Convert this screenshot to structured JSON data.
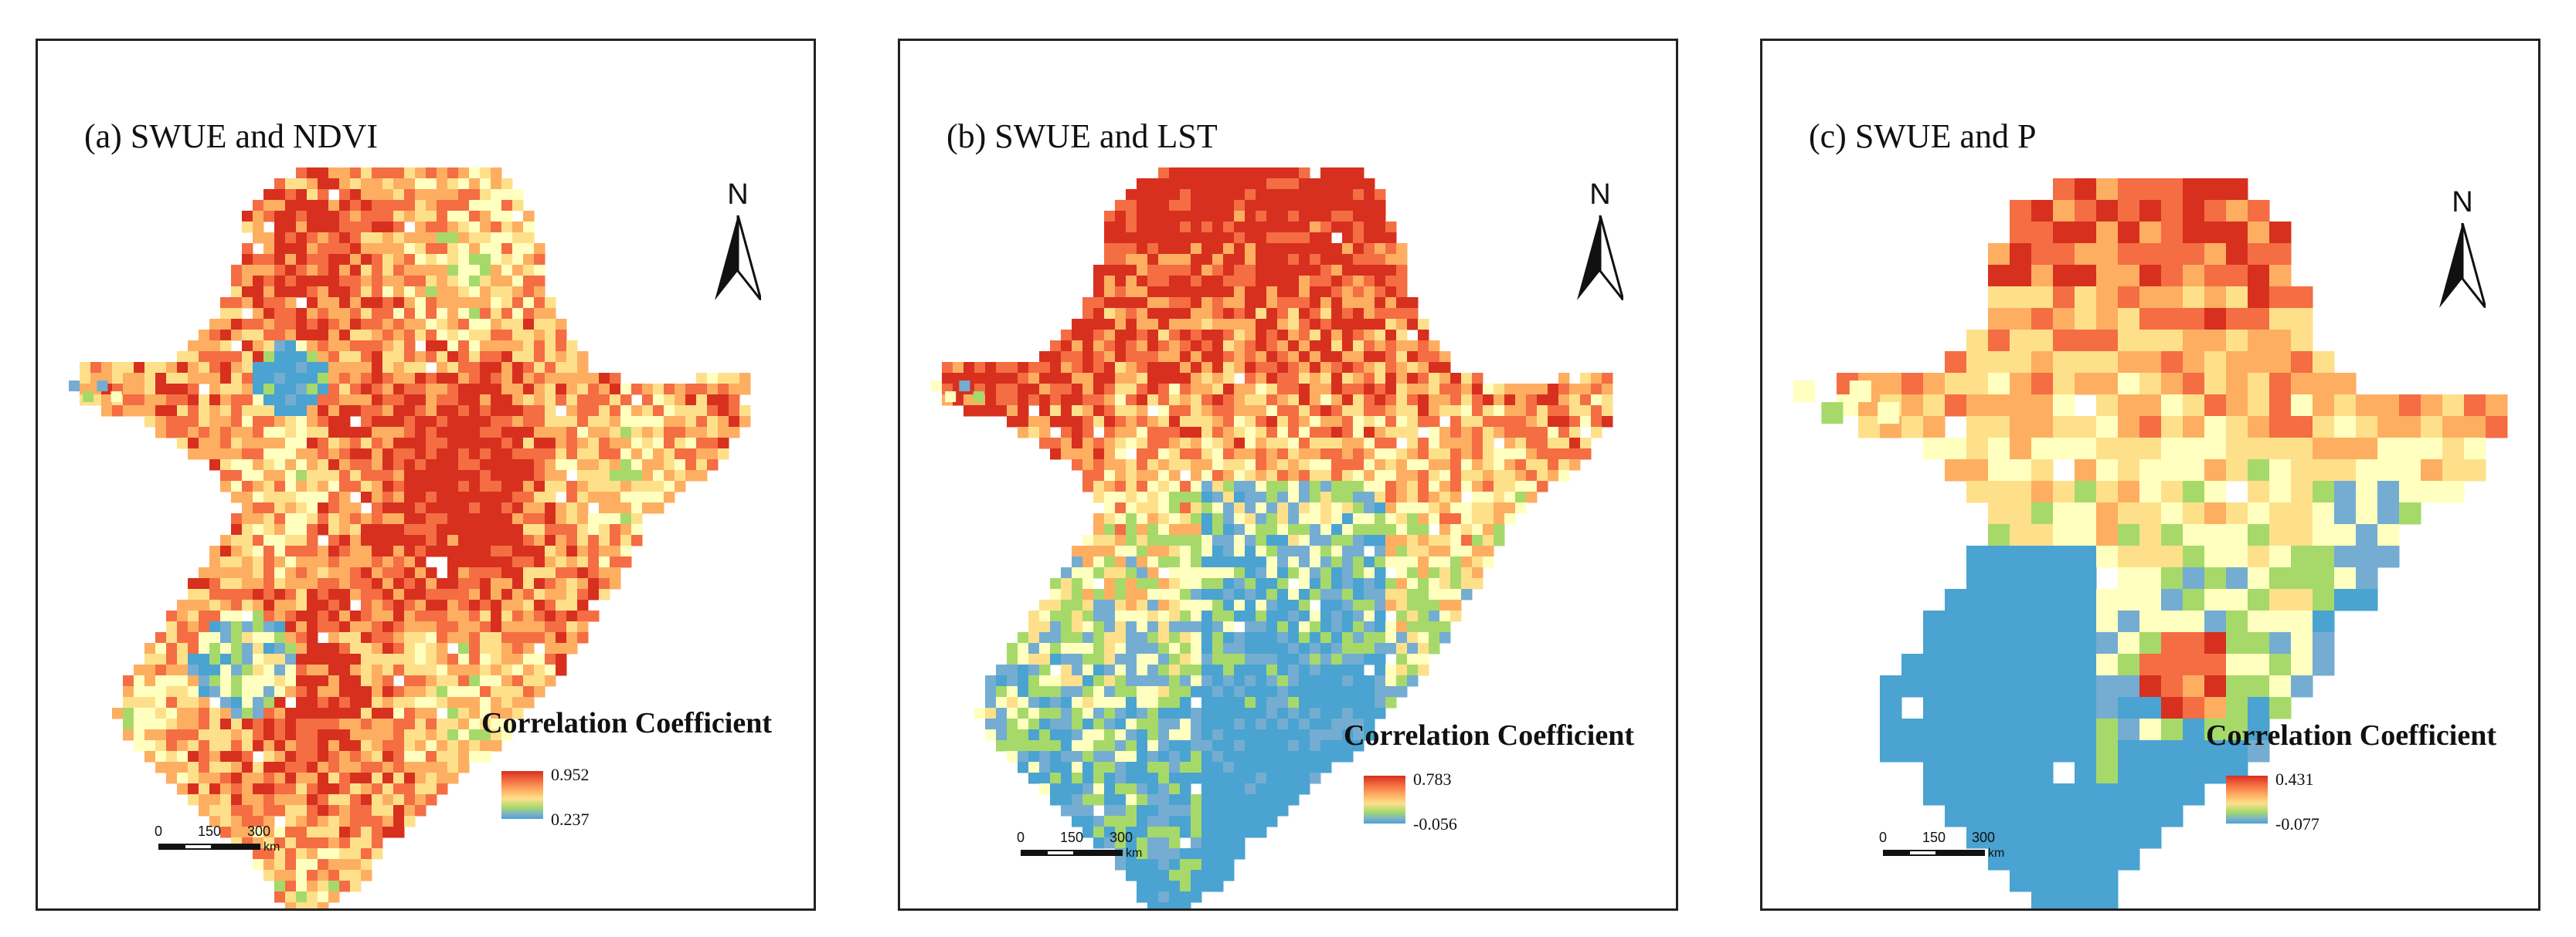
{
  "panels": [
    {
      "title": "(a) SWUE and NDVI",
      "north_label": "N",
      "legend": {
        "title": "Correlation Coefficient",
        "max": "0.952",
        "min": "0.237"
      },
      "scale": {
        "ticks": [
          "0",
          "150",
          "300"
        ],
        "unit": "km"
      }
    },
    {
      "title": "(b) SWUE and LST",
      "north_label": "N",
      "legend": {
        "title": "Correlation Coefficient",
        "max": "0.783",
        "min": "-0.056"
      },
      "scale": {
        "ticks": [
          "0",
          "150",
          "300"
        ],
        "unit": "km"
      }
    },
    {
      "title": "(c) SWUE and P",
      "north_label": "N",
      "legend": {
        "title": "Correlation Coefficient",
        "max": "0.431",
        "min": "-0.077"
      },
      "scale": {
        "ticks": [
          "0",
          "150",
          "300"
        ],
        "unit": "km"
      }
    }
  ],
  "colors": {
    "ramp": [
      "#d7301f",
      "#f46d43",
      "#fdae61",
      "#fee08b",
      "#ffffbf",
      "#a6d96a",
      "#74add1",
      "#4aa3d0"
    ],
    "frame": "#222222"
  }
}
